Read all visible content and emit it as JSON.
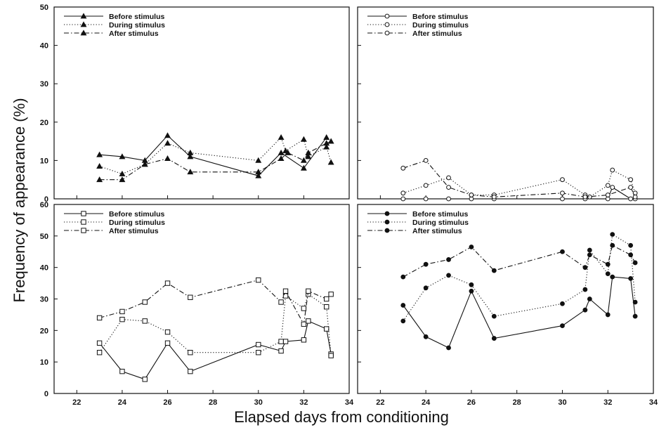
{
  "figure": {
    "ylabel": "Frequency of appearance (%)",
    "xlabel": "Elapsed days from conditioning"
  },
  "chart_data": [
    {
      "type": "line",
      "panel": "top-left",
      "marker": "filled-triangle",
      "xlim": [
        21,
        34
      ],
      "ylim": [
        0,
        50
      ],
      "xticks": [
        22,
        24,
        26,
        28,
        30,
        32,
        34
      ],
      "yticks": [
        0,
        10,
        20,
        30,
        40,
        50
      ],
      "legend_position": "top-left",
      "series": [
        {
          "name": "Before stimulus",
          "style": "solid",
          "x": [
            23,
            24,
            25,
            26,
            27,
            30,
            31,
            32,
            33
          ],
          "y": [
            11.5,
            11,
            10,
            16.5,
            11,
            6,
            12,
            8,
            16
          ]
        },
        {
          "name": "During stimulus",
          "style": "dotted",
          "x": [
            23,
            24,
            25,
            26,
            27,
            30,
            31,
            31.2,
            32,
            32.2,
            33,
            33.2
          ],
          "y": [
            8.5,
            6.5,
            9,
            14.5,
            12,
            10,
            16,
            12.5,
            15.5,
            11,
            13.5,
            9.5
          ]
        },
        {
          "name": "After stimulus",
          "style": "dashdot",
          "x": [
            23,
            24,
            25,
            26,
            27,
            30,
            31,
            31.3,
            32,
            32.2,
            33,
            33.2
          ],
          "y": [
            5,
            5,
            9,
            10.5,
            7,
            7,
            10.5,
            12,
            10,
            12,
            14.5,
            15
          ]
        }
      ]
    },
    {
      "type": "line",
      "panel": "top-right",
      "marker": "open-circle",
      "xlim": [
        21,
        34
      ],
      "ylim": [
        0,
        50
      ],
      "xticks": [
        22,
        24,
        26,
        28,
        30,
        32,
        34
      ],
      "yticks": [
        0,
        10,
        20,
        30,
        40,
        50
      ],
      "legend_position": "top-left",
      "series": [
        {
          "name": "Before stimulus",
          "style": "solid",
          "x": [
            23,
            24,
            25,
            26,
            27,
            30,
            31,
            32,
            32.2,
            33,
            33.2
          ],
          "y": [
            0,
            0,
            0,
            0,
            0,
            0,
            0,
            0,
            3,
            0,
            0
          ]
        },
        {
          "name": "During stimulus",
          "style": "dotted",
          "x": [
            23,
            24,
            25,
            26,
            27,
            30,
            31,
            31.2,
            32,
            32.2,
            33,
            33.2
          ],
          "y": [
            1.5,
            3.5,
            5.5,
            1,
            1,
            5,
            1,
            0.5,
            3.5,
            7.5,
            5,
            1.5
          ]
        },
        {
          "name": "After stimulus",
          "style": "dashdot",
          "x": [
            23,
            24,
            25,
            26,
            27,
            30,
            31,
            32,
            33,
            33.2
          ],
          "y": [
            8,
            10,
            3,
            1,
            0.5,
            1.5,
            0.5,
            1,
            3,
            0.5
          ]
        }
      ]
    },
    {
      "type": "line",
      "panel": "bottom-left",
      "marker": "open-square",
      "xlim": [
        21,
        34
      ],
      "ylim": [
        0,
        60
      ],
      "xticks": [
        22,
        24,
        26,
        28,
        30,
        32,
        34
      ],
      "yticks": [
        0,
        10,
        20,
        30,
        40,
        50,
        60
      ],
      "legend_position": "top-left",
      "series": [
        {
          "name": "Before stimulus",
          "style": "solid",
          "x": [
            23,
            24,
            25,
            26,
            27,
            30,
            31,
            31.2,
            32,
            32.2,
            33,
            33.2
          ],
          "y": [
            16,
            7,
            4.5,
            16,
            7,
            15.5,
            13.5,
            16.5,
            17,
            23,
            20.5,
            12.5
          ]
        },
        {
          "name": "During stimulus",
          "style": "dotted",
          "x": [
            23,
            24,
            25,
            26,
            27,
            30,
            31,
            31.2,
            32,
            32.2,
            33,
            33.2
          ],
          "y": [
            13,
            23.5,
            23,
            19.5,
            13,
            13,
            16.5,
            31,
            27,
            31.5,
            27.5,
            12
          ]
        },
        {
          "name": "After stimulus",
          "style": "dashdot",
          "x": [
            23,
            24,
            25,
            26,
            27,
            30,
            31,
            31.2,
            32,
            32.2,
            33,
            33.2
          ],
          "y": [
            24,
            26,
            29,
            35,
            30.5,
            36,
            29,
            32.5,
            22,
            32.5,
            30,
            31.5
          ]
        }
      ]
    },
    {
      "type": "line",
      "panel": "bottom-right",
      "marker": "filled-circle",
      "xlim": [
        21,
        34
      ],
      "ylim": [
        0,
        60
      ],
      "xticks": [
        22,
        24,
        26,
        28,
        30,
        32,
        34
      ],
      "yticks": [
        0,
        10,
        20,
        30,
        40,
        50,
        60
      ],
      "legend_position": "top-left",
      "series": [
        {
          "name": "Before stimulus",
          "style": "solid",
          "x": [
            23,
            24,
            25,
            26,
            27,
            30,
            31,
            31.2,
            32,
            32.2,
            33,
            33.2
          ],
          "y": [
            28,
            18,
            14.5,
            32.5,
            17.5,
            21.5,
            26.5,
            30,
            25,
            37,
            36.5,
            24.5
          ]
        },
        {
          "name": "During stimulus",
          "style": "dotted",
          "x": [
            23,
            24,
            25,
            26,
            27,
            30,
            31,
            31.2,
            32,
            32.2,
            33,
            33.2
          ],
          "y": [
            23,
            33.5,
            37.5,
            34.5,
            24.5,
            28.5,
            33,
            45.5,
            38,
            50.5,
            47,
            29
          ]
        },
        {
          "name": "After stimulus",
          "style": "dashdot",
          "x": [
            23,
            24,
            25,
            26,
            27,
            30,
            31,
            31.2,
            32,
            32.2,
            33,
            33.2
          ],
          "y": [
            37,
            41,
            42.5,
            46.5,
            39,
            45,
            40,
            44,
            41,
            47,
            44,
            41.5
          ]
        }
      ]
    }
  ]
}
